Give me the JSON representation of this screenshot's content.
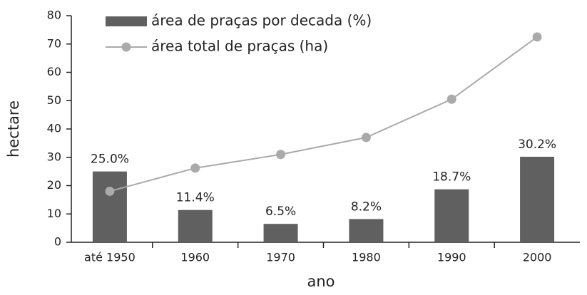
{
  "chart_data": {
    "type": "combo",
    "categories": [
      "até 1950",
      "1960",
      "1970",
      "1980",
      "1990",
      "2000"
    ],
    "series": [
      {
        "name": "área de praças por decada (%)",
        "type": "bar",
        "color": "#606060",
        "values": [
          25.0,
          11.4,
          6.5,
          8.2,
          18.7,
          30.2
        ],
        "value_labels": [
          "25.0%",
          "11.4%",
          "6.5%",
          "8.2%",
          "18.7%",
          "30.2%"
        ]
      },
      {
        "name": "área total de praças (ha)",
        "type": "line",
        "color": "#aaaaaa",
        "values": [
          18,
          26.2,
          31,
          37,
          50.5,
          72.5
        ]
      }
    ],
    "ylabel": "hectare",
    "xlabel": "ano",
    "ylim": [
      0,
      80
    ],
    "yticks": [
      0,
      10,
      20,
      30,
      40,
      50,
      60,
      70,
      80
    ]
  }
}
